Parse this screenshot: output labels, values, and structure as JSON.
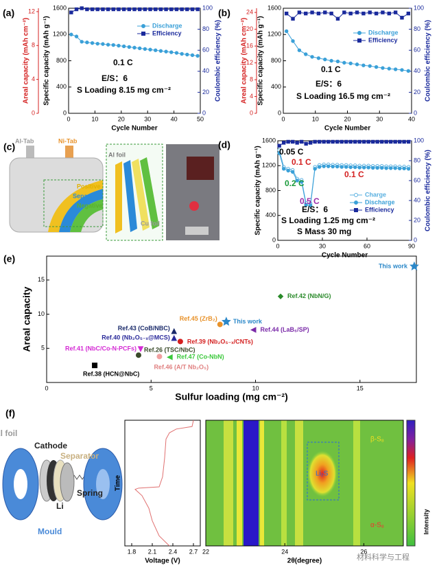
{
  "chart_data": [
    {
      "type": "line",
      "panel": "(a)",
      "x": [
        1,
        3,
        5,
        7,
        9,
        11,
        13,
        15,
        17,
        19,
        21,
        23,
        25,
        27,
        29,
        31,
        33,
        35,
        37,
        39,
        41,
        43,
        45,
        47,
        49
      ],
      "xlim": [
        0,
        50
      ],
      "xticks": [
        0,
        10,
        20,
        30,
        40,
        50
      ],
      "xlabel": "Cycle Number",
      "ylim": [
        0,
        1600
      ],
      "yticks": [
        0,
        400,
        800,
        1200,
        1600
      ],
      "ylabel": "Specific capacity (mAh g⁻¹)",
      "y2lim": [
        0,
        100
      ],
      "y2ticks": [
        0,
        20,
        40,
        60,
        80,
        100
      ],
      "y2label": "Coulombic efficiency (%)",
      "y2color": "#1a2a9c",
      "areal_axis": {
        "label": "Areal capacity (mAh cm⁻²)",
        "lim": [
          0,
          12.4
        ],
        "ticks": [
          0,
          4,
          8,
          12
        ],
        "color": "#d42020"
      },
      "series": [
        {
          "name": "Discharge",
          "color": "#3aa0d8",
          "marker": "circle",
          "values": [
            1200,
            1170,
            1090,
            1080,
            1070,
            1060,
            1055,
            1045,
            1040,
            1030,
            1020,
            1010,
            1000,
            990,
            980,
            970,
            960,
            950,
            940,
            930,
            920,
            905,
            895,
            885,
            875
          ]
        },
        {
          "name": "Efficiency",
          "color": "#1a2a9c",
          "marker": "square",
          "axis": "y2",
          "values": [
            96,
            99,
            100,
            99,
            99,
            99,
            99,
            99,
            99,
            99,
            99,
            99,
            99,
            99,
            99,
            99,
            99,
            99,
            99,
            99,
            99,
            99,
            99,
            99,
            99
          ]
        }
      ],
      "annotations": [
        {
          "text": "0.1 C",
          "color": "#000"
        },
        {
          "text": "E/S：6",
          "color": "#000"
        },
        {
          "text": "S Loading 8.15 mg cm⁻²",
          "color": "#000"
        }
      ]
    },
    {
      "type": "line",
      "panel": "(b)",
      "x": [
        1,
        3,
        5,
        7,
        9,
        11,
        13,
        15,
        17,
        19,
        21,
        23,
        25,
        27,
        29,
        31,
        33,
        35,
        37,
        39
      ],
      "xlim": [
        0,
        40
      ],
      "xticks": [
        0,
        10,
        20,
        30,
        40
      ],
      "xlabel": "Cycle Number",
      "ylim": [
        0,
        1600
      ],
      "yticks": [
        0,
        400,
        800,
        1200,
        1600
      ],
      "ylabel": "Specific capacity (mAh g⁻¹)",
      "y2lim": [
        0,
        100
      ],
      "y2ticks": [
        0,
        20,
        40,
        60,
        80,
        100
      ],
      "y2label": "Coulombic efficiency (%)",
      "y2color": "#1a2a9c",
      "areal_axis": {
        "label": "Areal capacity (mAh cm⁻²)",
        "lim": [
          0,
          25
        ],
        "ticks": [
          0,
          4,
          8,
          12,
          16,
          20,
          24
        ],
        "color": "#d42020"
      },
      "series": [
        {
          "name": "Discharge",
          "color": "#3aa0d8",
          "marker": "circle",
          "values": [
            1250,
            1100,
            960,
            900,
            860,
            840,
            820,
            800,
            790,
            770,
            760,
            745,
            730,
            720,
            705,
            690,
            680,
            670,
            660,
            645
          ]
        },
        {
          "name": "Efficiency",
          "color": "#1a2a9c",
          "marker": "square",
          "axis": "y2",
          "values": [
            95,
            90,
            96,
            95,
            96,
            95,
            96,
            95,
            90,
            96,
            95,
            96,
            95,
            96,
            95,
            96,
            95,
            96,
            91,
            95
          ]
        }
      ],
      "annotations": [
        {
          "text": "0.1 C",
          "color": "#000"
        },
        {
          "text": "E/S：6",
          "color": "#000"
        },
        {
          "text": "S Loading 16.5 mg cm⁻²",
          "color": "#000"
        }
      ]
    },
    {
      "type": "line",
      "panel": "(d)",
      "x": [
        1,
        4,
        7,
        10,
        13,
        16,
        19,
        22,
        25,
        28,
        31,
        34,
        37,
        40,
        43,
        46,
        49,
        52,
        55,
        58,
        61,
        64,
        67,
        70,
        73,
        76,
        79,
        82,
        85,
        88
      ],
      "xlim": [
        0,
        90
      ],
      "xticks": [
        0,
        30,
        60,
        90
      ],
      "xlabel": "Cycle Number",
      "ylim": [
        0,
        1600
      ],
      "yticks": [
        0,
        400,
        800,
        1200,
        1600
      ],
      "ylabel": "Specific capacity (mAh g⁻¹)",
      "y2lim": [
        0,
        100
      ],
      "y2ticks": [
        0,
        20,
        40,
        60,
        80,
        100
      ],
      "y2label": "Coulombic efficiency (%)",
      "y2color": "#1a2a9c",
      "series": [
        {
          "name": "Charge",
          "color": "#5ab0e0",
          "marker": "open-circle",
          "values": [
            1450,
            1180,
            1150,
            1130,
            990,
            970,
            600,
            590,
            1180,
            1210,
            1220,
            1220,
            1215,
            1215,
            1210,
            1210,
            1205,
            1205,
            1200,
            1200,
            1200,
            1195,
            1195,
            1195,
            1190,
            1190,
            1190,
            1185,
            1185,
            1180
          ]
        },
        {
          "name": "Discharge",
          "color": "#3aa0d8",
          "marker": "circle",
          "values": [
            1400,
            1150,
            1120,
            1100,
            960,
            940,
            570,
            560,
            1150,
            1180,
            1190,
            1190,
            1185,
            1185,
            1180,
            1180,
            1175,
            1175,
            1170,
            1170,
            1170,
            1165,
            1165,
            1165,
            1160,
            1160,
            1160,
            1155,
            1155,
            1150
          ]
        },
        {
          "name": "Efficiency",
          "color": "#1a2a9c",
          "marker": "square",
          "axis": "y2",
          "values": [
            95,
            98,
            99,
            99,
            98,
            99,
            97,
            98,
            99,
            99,
            99,
            99,
            99,
            99,
            99,
            99,
            99,
            99,
            99,
            99,
            99,
            99,
            99,
            99,
            99,
            99,
            99,
            99,
            99,
            99
          ]
        }
      ],
      "annotations": [
        {
          "text": "0.05 C",
          "color": "#000"
        },
        {
          "text": "0.1 C",
          "color": "#d42020"
        },
        {
          "text": "0.2 C",
          "color": "#1a9a3a"
        },
        {
          "text": "0.5 C",
          "color": "#9a2aa8"
        },
        {
          "text": "0.1 C",
          "color": "#d42020"
        },
        {
          "text": "E/S：6",
          "color": "#000"
        },
        {
          "text": "S Loading 1.25 mg cm⁻²",
          "color": "#000"
        },
        {
          "text": "S Mass 30 mg",
          "color": "#000"
        }
      ]
    },
    {
      "type": "scatter",
      "panel": "(e)",
      "xlim": [
        0,
        17.7
      ],
      "xticks": [
        0,
        5,
        10,
        15
      ],
      "xlabel": "Sulfur loading (mg cm⁻²)",
      "ylim": [
        0,
        18.5
      ],
      "yticks": [
        5,
        10,
        15
      ],
      "ylabel": "Areal capacity",
      "points": [
        {
          "name": "This work",
          "x": 17.6,
          "y": 17,
          "color": "#2a87c8",
          "marker": "star"
        },
        {
          "name": "Ref.42 (NbN/G)",
          "x": 11.2,
          "y": 12.6,
          "color": "#2a8a2a",
          "marker": "diamond"
        },
        {
          "name": "Ref.45 (ZrB₂)",
          "x": 8.3,
          "y": 8.5,
          "color": "#e8922a",
          "marker": "circle"
        },
        {
          "name": "This work",
          "x": 8.6,
          "y": 8.9,
          "color": "#2a87c8",
          "marker": "star"
        },
        {
          "name": "Ref.44 (LaB₆/SP)",
          "x": 9.9,
          "y": 7.7,
          "color": "#7a2aa8",
          "marker": "triangle-left"
        },
        {
          "name": "Ref.43 (CoB/NBC)",
          "x": 6.1,
          "y": 7.5,
          "color": "#1a2a6a",
          "marker": "triangle-up"
        },
        {
          "name": "Ref.40 (Nb₂O₅₋ₓ@MCS)",
          "x": 6.1,
          "y": 6.5,
          "color": "#2a2a9a",
          "marker": "triangle-up"
        },
        {
          "name": "Ref.39 (Nb₂O₅₋ₓ/CNTs)",
          "x": 6.4,
          "y": 6.0,
          "color": "#d42020",
          "marker": "circle"
        },
        {
          "name": "Ref.41 (NbC/Co-N-PCFs)",
          "x": 4.5,
          "y": 4.9,
          "color": "#d42ad4",
          "marker": "triangle-down"
        },
        {
          "name": "Ref.26 (TSC/NbC)",
          "x": 4.4,
          "y": 4.0,
          "color": "#3a4a2a",
          "marker": "circle"
        },
        {
          "name": "Ref.46 (A/T Nb₂O₅)",
          "x": 5.4,
          "y": 3.8,
          "color": "#f0a0a0",
          "marker": "circle"
        },
        {
          "name": "Ref.47 (Co-NbN)",
          "x": 5.9,
          "y": 3.7,
          "color": "#3ac83a",
          "marker": "triangle-left"
        },
        {
          "name": "Ref.38 (HCN@NbC)",
          "x": 2.3,
          "y": 2.5,
          "color": "#000",
          "marker": "square"
        }
      ]
    },
    {
      "type": "line",
      "x": [
        2.35,
        2.2,
        2.1,
        2.05,
        1.95,
        1.85,
        1.9,
        2.2,
        2.25,
        2.28,
        2.3,
        2.35,
        2.45,
        2.68,
        2.7
      ],
      "xlim": [
        1.7,
        2.8
      ],
      "xticks": [
        1.8,
        2.1,
        2.4,
        2.7
      ],
      "xlabel": "Voltage (V)",
      "ylim": [
        0,
        100
      ],
      "ylabel": "Time",
      "series": [
        {
          "color": "#e07070",
          "values": [
            0,
            8,
            20,
            30,
            40,
            45,
            46,
            47,
            55,
            70,
            85,
            90,
            93,
            95,
            100
          ]
        }
      ]
    },
    {
      "type": "heatmap",
      "xlim": [
        22,
        27
      ],
      "xticks": [
        22,
        24,
        26
      ],
      "xlabel": "2θ(degree)",
      "colorbar_label": "Intensity",
      "annotations": [
        {
          "text": "β-S₈",
          "color": "#f0e020"
        },
        {
          "text": "Li₂S",
          "color": "#2a6ad8"
        },
        {
          "text": "α-S₈",
          "color": "#f03030"
        }
      ]
    }
  ],
  "diagrams": {
    "cell": {
      "panel": "(c)",
      "labels": [
        "Al-Tab",
        "Ni-Tab",
        "Positive",
        "Separator",
        "Negative",
        "Al foil",
        "Cu foil"
      ]
    },
    "mould": {
      "panel": "(f)",
      "labels": [
        "Al foil",
        "Cathode",
        "Separator",
        "Spring",
        "Li",
        "Mould"
      ]
    },
    "watermark": "材料科学与工程"
  }
}
